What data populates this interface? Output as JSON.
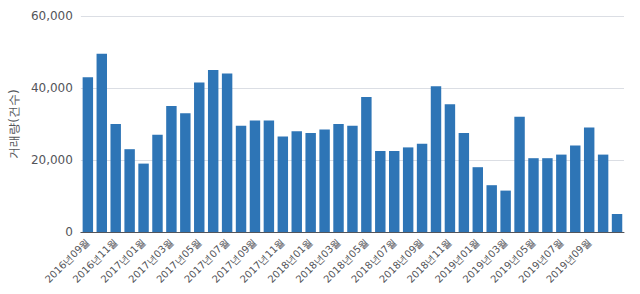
{
  "chart_data": {
    "type": "bar",
    "categories": [
      "2016년09월",
      null,
      "2016년11월",
      null,
      "2017년01월",
      null,
      "2017년03월",
      null,
      "2017년05월",
      null,
      "2017년07월",
      null,
      "2017년09월",
      null,
      "2017년11월",
      null,
      "2018년01월",
      null,
      "2018년03월",
      null,
      "2018년05월",
      null,
      "2018년07월",
      null,
      "2018년09월",
      null,
      "2018년11월",
      null,
      "2019년01월",
      null,
      "2019년03월",
      null,
      "2019년05월",
      null,
      "2019년07월",
      null,
      "2019년09월",
      null,
      null
    ],
    "values": [
      43000,
      49500,
      30000,
      23000,
      19000,
      27000,
      35000,
      33000,
      41500,
      45000,
      44000,
      29500,
      31000,
      31000,
      26500,
      28000,
      27500,
      28500,
      30000,
      29500,
      37500,
      22500,
      22500,
      23500,
      24500,
      40500,
      35500,
      27500,
      18000,
      13000,
      11500,
      32000,
      20500,
      20500,
      21500,
      24000,
      29000,
      21500,
      5000
    ],
    "color": "#2E75B6",
    "ylabel": "거래량(건수)",
    "ylim": [
      0,
      60000
    ],
    "yticks": [
      0,
      {
        "value": 20000,
        "label": "20,000"
      },
      {
        "value": 40000,
        "label": "40,000"
      },
      {
        "value": 60000,
        "label": "60,000"
      }
    ],
    "grid": true
  }
}
